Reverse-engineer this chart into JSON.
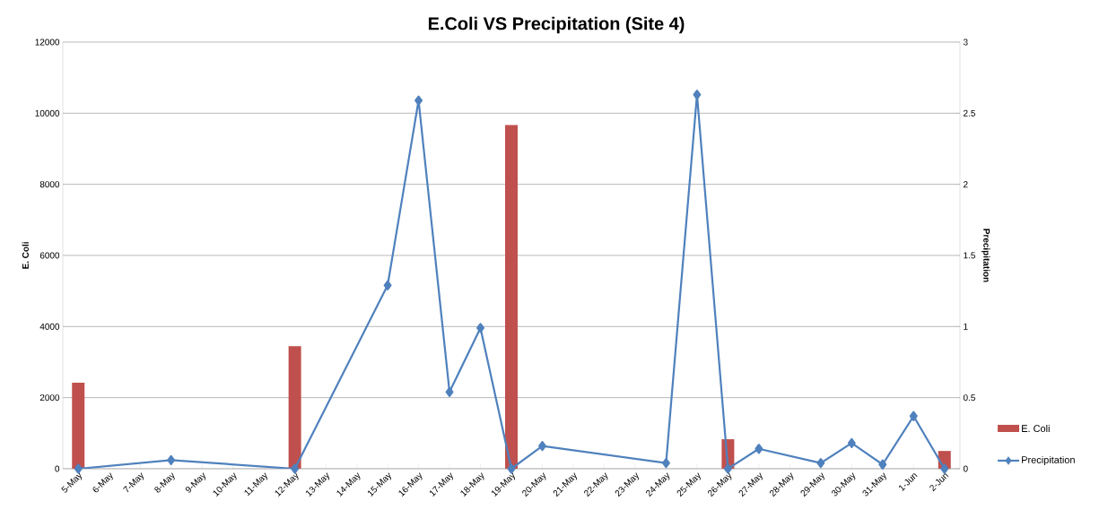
{
  "chart_data": {
    "type": "bar",
    "title": "E.Coli VS Precipitation (Site 4)",
    "ylabel": "E. Coli",
    "y2label": "Precipitation",
    "categories": [
      "5-May",
      "6-May",
      "7-May",
      "8-May",
      "9-May",
      "10-May",
      "11-May",
      "12-May",
      "13-May",
      "14-May",
      "15-May",
      "16-May",
      "17-May",
      "18-May",
      "19-May",
      "20-May",
      "21-May",
      "22-May",
      "23-May",
      "24-May",
      "25-May",
      "26-May",
      "27-May",
      "28-May",
      "29-May",
      "30-May",
      "31-May",
      "1-Jun",
      "2-Jun"
    ],
    "series": [
      {
        "name": "E. Coli",
        "color": "#c0504d",
        "values": [
          2420,
          null,
          null,
          null,
          null,
          null,
          null,
          3450,
          null,
          null,
          null,
          null,
          null,
          null,
          9670,
          null,
          null,
          null,
          null,
          null,
          null,
          830,
          null,
          null,
          null,
          null,
          null,
          null,
          500
        ]
      },
      {
        "name": "Precipitation",
        "type": "line",
        "axis": "y2",
        "color": "#4f81bd",
        "values": [
          0,
          null,
          null,
          0.06,
          null,
          null,
          null,
          0,
          null,
          null,
          1.29,
          2.59,
          0.54,
          0.99,
          0,
          0.16,
          null,
          null,
          null,
          0.04,
          2.63,
          0,
          0.14,
          null,
          0.04,
          0.18,
          0.03,
          0.37,
          0
        ]
      }
    ],
    "ylim": [
      0,
      12000
    ],
    "yticks": [
      0,
      2000,
      4000,
      6000,
      8000,
      10000,
      12000
    ],
    "y2lim": [
      0,
      3
    ],
    "y2ticks": [
      0,
      0.5,
      1,
      1.5,
      2,
      2.5,
      3
    ],
    "grid": "y",
    "legend": "right",
    "marker": "diamond",
    "line_style": "solid"
  }
}
